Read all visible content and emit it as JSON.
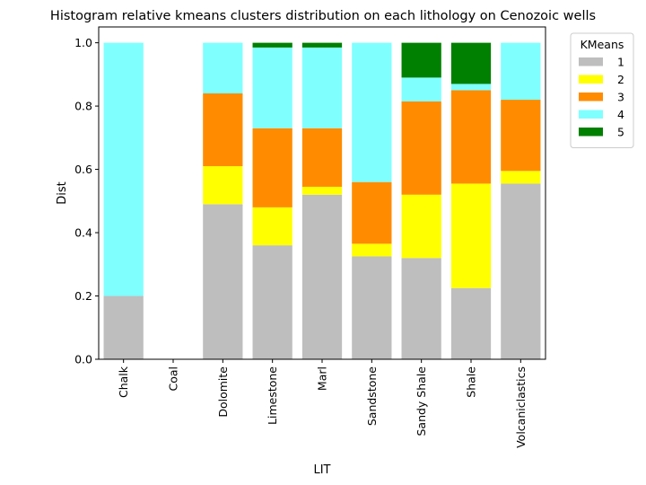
{
  "chart_data": {
    "type": "bar",
    "stacked": true,
    "title": "Histogram relative kmeans clusters distribution on each lithology on Cenozoic wells",
    "xlabel": "LIT",
    "ylabel": "Dist",
    "ylim": [
      0,
      1.05
    ],
    "yticks": [
      0.0,
      0.2,
      0.4,
      0.6,
      0.8,
      1.0
    ],
    "ytick_labels": [
      "0.0",
      "0.2",
      "0.4",
      "0.6",
      "0.8",
      "1.0"
    ],
    "grid": false,
    "legend": {
      "title": "KMeans",
      "placement": "outside-top-right"
    },
    "categories": [
      "Chalk",
      "Coal",
      "Dolomite",
      "Limestone",
      "Marl",
      "Sandstone",
      "Sandy Shale",
      "Shale",
      "Volcaniclastics"
    ],
    "series": [
      {
        "name": "1",
        "color": "#bebebe",
        "values": [
          0.2,
          0,
          0.49,
          0.36,
          0.52,
          0.325,
          0.32,
          0.225,
          0.555
        ]
      },
      {
        "name": "2",
        "color": "#ffff00",
        "values": [
          0,
          0,
          0.12,
          0.12,
          0.025,
          0.04,
          0.2,
          0.33,
          0.04
        ]
      },
      {
        "name": "3",
        "color": "#ff8c00",
        "values": [
          0,
          0,
          0.23,
          0.25,
          0.185,
          0.195,
          0.295,
          0.295,
          0.225
        ]
      },
      {
        "name": "4",
        "color": "#80ffff",
        "values": [
          0.8,
          0,
          0.16,
          0.255,
          0.255,
          0.44,
          0.075,
          0.02,
          0.18
        ]
      },
      {
        "name": "5",
        "color": "#008000",
        "values": [
          0,
          0,
          0,
          0.015,
          0.015,
          0,
          0.11,
          0.13,
          0
        ]
      }
    ]
  }
}
